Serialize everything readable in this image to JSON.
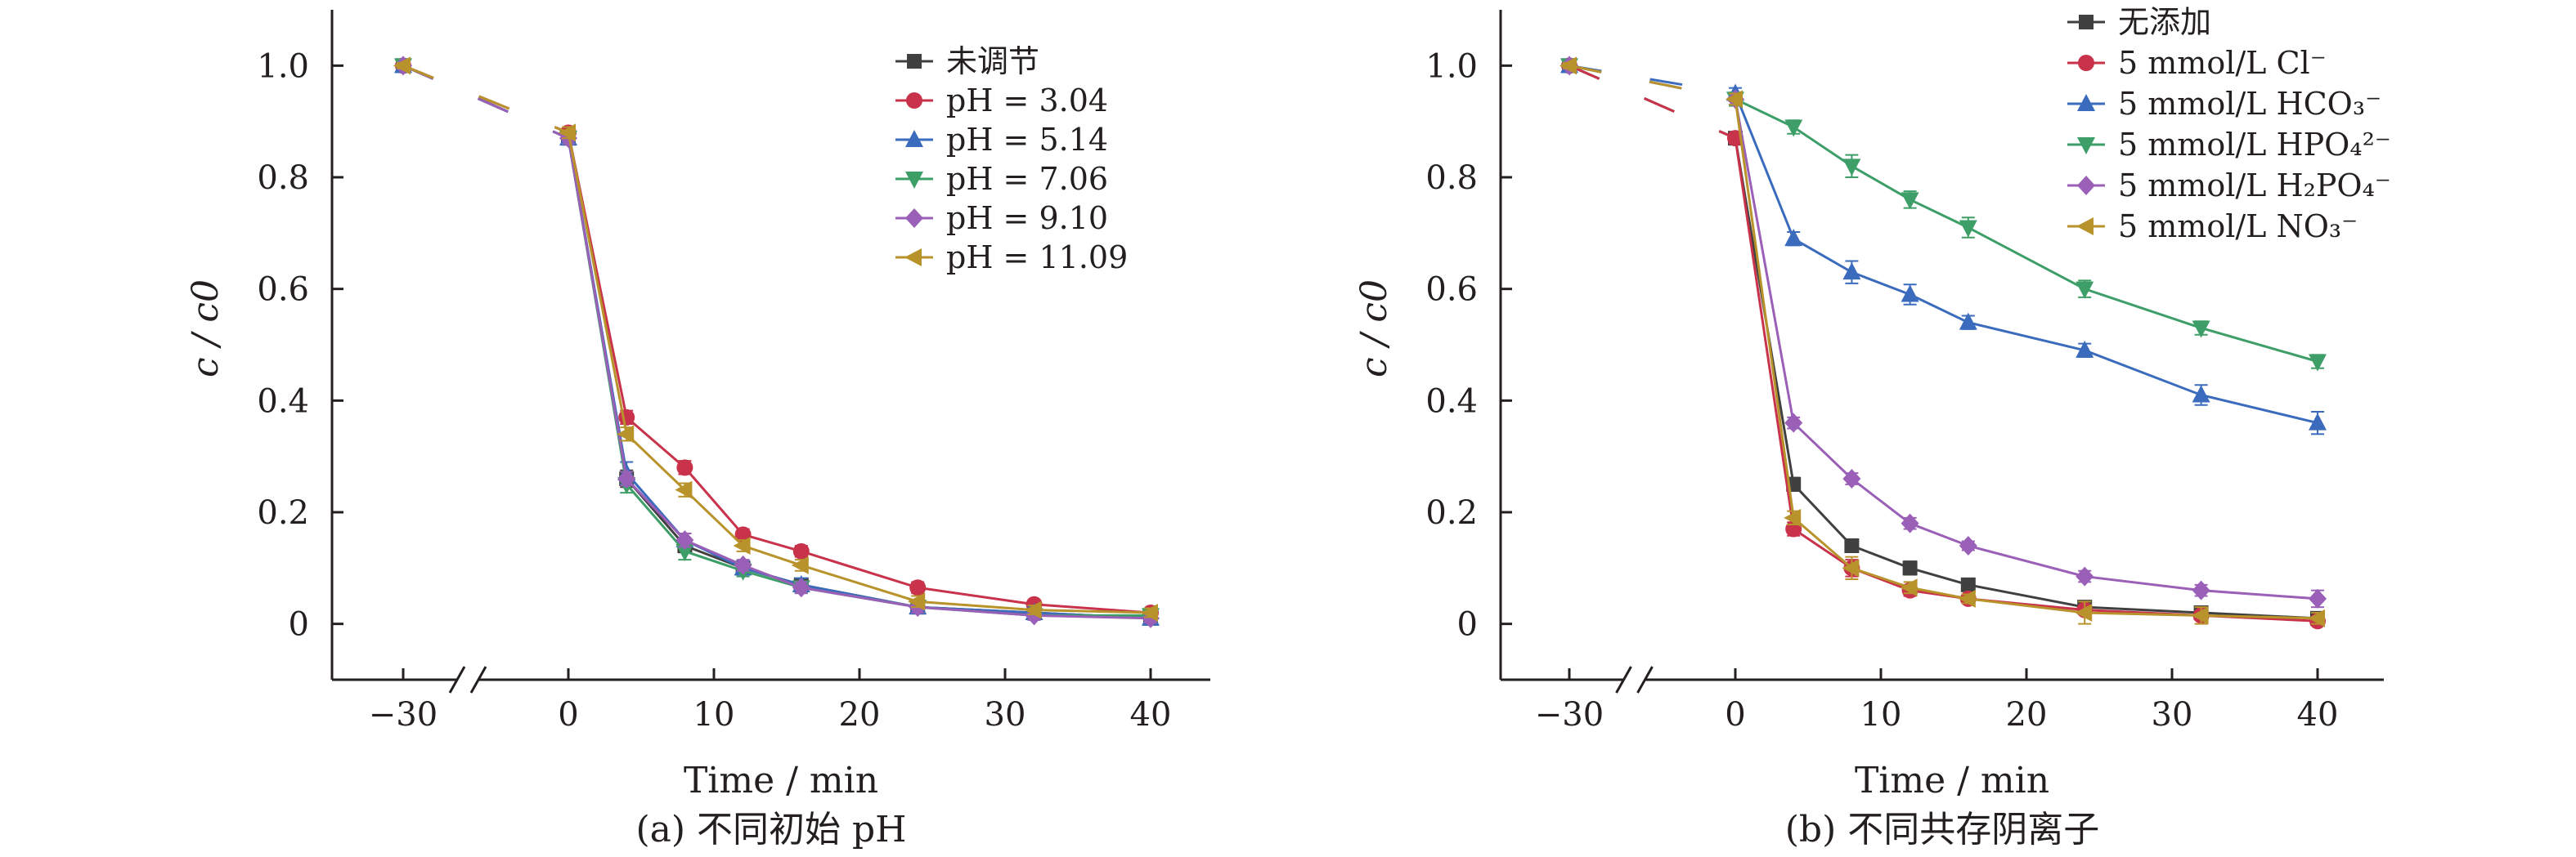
{
  "figure": {
    "caption_a": "(a) 不同初始 pH",
    "caption_b": "(b) 不同共存阴离子"
  },
  "chart_data": [
    {
      "type": "line",
      "caption": "(a) 不同初始 pH",
      "xlabel": "Time / min",
      "ylabel": "c / c0",
      "x_tick_labels": [
        "−30",
        "0",
        "10",
        "20",
        "30",
        "40"
      ],
      "y_tick_labels": [
        "0",
        "0.2",
        "0.4",
        "0.6",
        "0.8",
        "1.0"
      ],
      "ylim": [
        -0.1,
        1.1
      ],
      "broken_x_axis": true,
      "x": [
        -30,
        0,
        4,
        8,
        12,
        16,
        24,
        32,
        40
      ],
      "legend_position": "top-right",
      "series": [
        {
          "name": "未调节",
          "color": "#404040",
          "marker": "square",
          "values": [
            1.0,
            0.87,
            0.26,
            0.14,
            0.1,
            0.07,
            0.03,
            0.02,
            0.01
          ],
          "errors": [
            0.005,
            0.01,
            0.015,
            0.012,
            0.012,
            0.01,
            0.01,
            0.008,
            0.01
          ]
        },
        {
          "name": "pH = 3.04",
          "color": "#c8324a",
          "marker": "circle",
          "values": [
            1.0,
            0.88,
            0.37,
            0.28,
            0.16,
            0.13,
            0.065,
            0.035,
            0.02
          ],
          "errors": [
            0.005,
            0.01,
            0.012,
            0.012,
            0.01,
            0.01,
            0.01,
            0.008,
            0.008
          ]
        },
        {
          "name": "pH = 5.14",
          "color": "#3a6bbd",
          "marker": "triangle-up",
          "values": [
            1.0,
            0.87,
            0.27,
            0.15,
            0.1,
            0.07,
            0.03,
            0.02,
            0.01
          ],
          "errors": [
            0.005,
            0.01,
            0.02,
            0.012,
            0.012,
            0.012,
            0.01,
            0.01,
            0.01
          ]
        },
        {
          "name": "pH = 7.06",
          "color": "#3d9e68",
          "marker": "triangle-down",
          "values": [
            1.0,
            0.87,
            0.25,
            0.13,
            0.095,
            0.065,
            0.03,
            0.015,
            0.015
          ],
          "errors": [
            0.005,
            0.01,
            0.015,
            0.015,
            0.01,
            0.01,
            0.01,
            0.008,
            0.01
          ]
        },
        {
          "name": "pH = 9.10",
          "color": "#9a5fb6",
          "marker": "diamond",
          "values": [
            1.0,
            0.87,
            0.26,
            0.15,
            0.105,
            0.065,
            0.03,
            0.015,
            0.01
          ],
          "errors": [
            0.005,
            0.01,
            0.012,
            0.012,
            0.01,
            0.01,
            0.01,
            0.008,
            0.008
          ]
        },
        {
          "name": "pH = 11.09",
          "color": "#b8922a",
          "marker": "triangle-left",
          "values": [
            1.0,
            0.88,
            0.34,
            0.24,
            0.14,
            0.105,
            0.04,
            0.025,
            0.02
          ],
          "errors": [
            0.005,
            0.01,
            0.012,
            0.012,
            0.01,
            0.01,
            0.01,
            0.008,
            0.008
          ]
        }
      ]
    },
    {
      "type": "line",
      "caption": "(b) 不同共存阴离子",
      "xlabel": "Time / min",
      "ylabel": "c / c0",
      "x_tick_labels": [
        "−30",
        "0",
        "10",
        "20",
        "30",
        "40"
      ],
      "y_tick_labels": [
        "0",
        "0.2",
        "0.4",
        "0.6",
        "0.8",
        "1.0"
      ],
      "ylim": [
        -0.1,
        1.1
      ],
      "broken_x_axis": true,
      "x": [
        -30,
        0,
        4,
        8,
        12,
        16,
        24,
        32,
        40
      ],
      "legend_position": "top-right",
      "series": [
        {
          "name": "无添加",
          "color": "#404040",
          "marker": "square",
          "values": [
            1.0,
            0.87,
            0.25,
            0.14,
            0.1,
            0.07,
            0.03,
            0.02,
            0.01
          ],
          "errors": [
            0.005,
            0.01,
            0.012,
            0.01,
            0.012,
            0.01,
            0.01,
            0.008,
            0.008
          ]
        },
        {
          "name": "5 mmol/L Cl⁻",
          "color": "#c8324a",
          "marker": "circle",
          "values": [
            1.0,
            0.87,
            0.17,
            0.1,
            0.06,
            0.045,
            0.025,
            0.015,
            0.005
          ],
          "errors": [
            0.005,
            0.01,
            0.012,
            0.015,
            0.01,
            0.008,
            0.008,
            0.008,
            0.008
          ]
        },
        {
          "name": "5 mmol/L HCO₃⁻",
          "color": "#3a6bbd",
          "marker": "triangle-up",
          "values": [
            1.0,
            0.95,
            0.69,
            0.63,
            0.59,
            0.54,
            0.49,
            0.41,
            0.36
          ],
          "errors": [
            0.005,
            0.01,
            0.012,
            0.02,
            0.018,
            0.012,
            0.012,
            0.018,
            0.02
          ]
        },
        {
          "name": "5 mmol/L HPO₄²⁻",
          "color": "#3d9e68",
          "marker": "triangle-down",
          "values": [
            1.0,
            0.94,
            0.89,
            0.82,
            0.76,
            0.71,
            0.6,
            0.53,
            0.47
          ],
          "errors": [
            0.005,
            0.012,
            0.012,
            0.02,
            0.015,
            0.018,
            0.015,
            0.012,
            0.012
          ]
        },
        {
          "name": "5 mmol/L H₂PO₄⁻",
          "color": "#9a5fb6",
          "marker": "diamond",
          "values": [
            1.0,
            0.94,
            0.36,
            0.26,
            0.18,
            0.14,
            0.085,
            0.06,
            0.045
          ],
          "errors": [
            0.005,
            0.01,
            0.01,
            0.01,
            0.01,
            0.008,
            0.01,
            0.01,
            0.015
          ]
        },
        {
          "name": "5 mmol/L NO₃⁻",
          "color": "#b8922a",
          "marker": "triangle-left",
          "values": [
            1.0,
            0.94,
            0.19,
            0.1,
            0.065,
            0.045,
            0.02,
            0.015,
            0.01
          ],
          "errors": [
            0.005,
            0.01,
            0.012,
            0.02,
            0.01,
            0.008,
            0.02,
            0.015,
            0.01
          ]
        }
      ]
    }
  ]
}
